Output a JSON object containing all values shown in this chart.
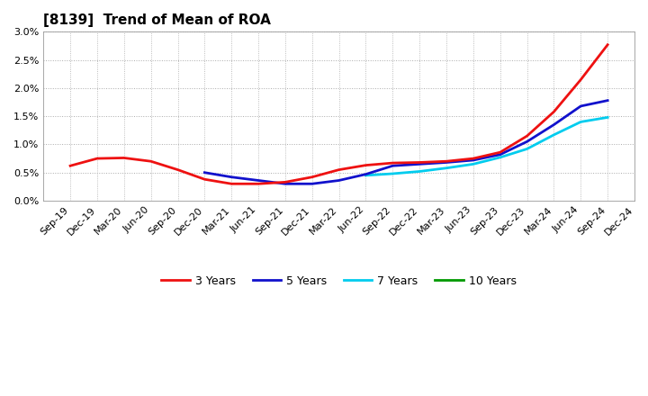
{
  "title": "[8139]  Trend of Mean of ROA",
  "ylim": [
    0.0,
    0.03
  ],
  "yticks": [
    0.0,
    0.005,
    0.01,
    0.015,
    0.02,
    0.025,
    0.03
  ],
  "ytick_labels": [
    "0.0%",
    "0.5%",
    "1.0%",
    "1.5%",
    "2.0%",
    "2.5%",
    "3.0%"
  ],
  "x_labels": [
    "Sep-19",
    "Dec-19",
    "Mar-20",
    "Jun-20",
    "Sep-20",
    "Dec-20",
    "Mar-21",
    "Jun-21",
    "Sep-21",
    "Dec-21",
    "Mar-22",
    "Jun-22",
    "Sep-22",
    "Dec-22",
    "Mar-23",
    "Jun-23",
    "Sep-23",
    "Dec-23",
    "Mar-24",
    "Jun-24",
    "Sep-24",
    "Dec-24"
  ],
  "background_color": "#ffffff",
  "plot_background": "#ffffff",
  "grid_color": "#aaaaaa",
  "line_3y_color": "#ee1111",
  "line_5y_color": "#1111cc",
  "line_7y_color": "#00ccee",
  "line_10y_color": "#009900",
  "legend_labels": [
    "3 Years",
    "5 Years",
    "7 Years",
    "10 Years"
  ],
  "series_3y": [
    0.0062,
    0.0075,
    0.0076,
    0.007,
    0.0055,
    0.0038,
    0.003,
    0.003,
    0.0033,
    0.0042,
    0.0055,
    0.0063,
    0.0067,
    0.0068,
    0.007,
    0.0075,
    0.0086,
    0.0115,
    0.0158,
    0.0215,
    0.0277,
    null
  ],
  "series_5y": [
    null,
    null,
    null,
    null,
    null,
    0.005,
    0.0042,
    0.0036,
    0.003,
    0.003,
    0.0036,
    0.0047,
    0.0062,
    0.0065,
    0.0068,
    0.0072,
    0.0082,
    0.0105,
    0.0135,
    0.0168,
    0.0178,
    null
  ],
  "series_7y": [
    null,
    null,
    null,
    null,
    null,
    null,
    null,
    null,
    null,
    null,
    null,
    0.0045,
    0.0048,
    0.0052,
    0.0058,
    0.0065,
    0.0077,
    0.0092,
    0.0117,
    0.014,
    0.0148,
    null
  ],
  "series_10y": [
    null,
    null,
    null,
    null,
    null,
    null,
    null,
    null,
    null,
    null,
    null,
    null,
    null,
    null,
    null,
    null,
    null,
    null,
    null,
    null,
    null,
    null
  ],
  "line_width": 2.0,
  "title_fontsize": 11,
  "tick_fontsize": 8,
  "legend_fontsize": 9
}
